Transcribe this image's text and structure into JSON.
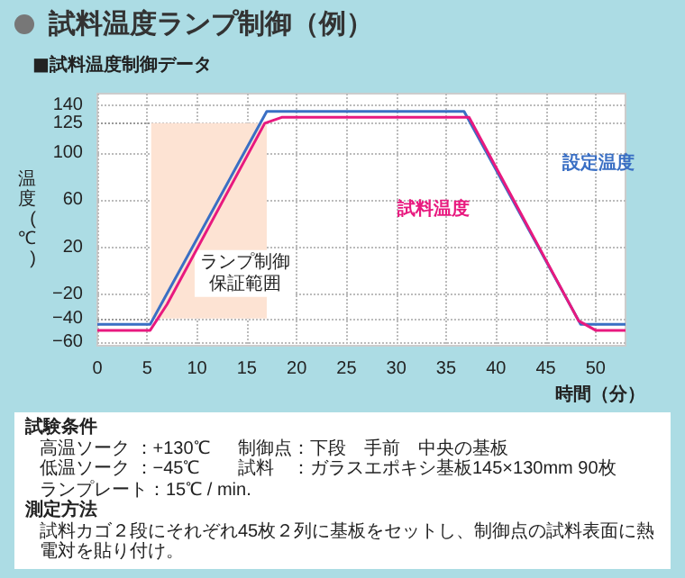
{
  "chart_data": {
    "type": "line",
    "title": "試料温度ランプ制御（例）",
    "subtitle": "■試料温度制御データ",
    "xlabel": "時間（分）",
    "ylabel": "温度(℃)",
    "xlim": [
      0,
      53
    ],
    "xticks": [
      0,
      5,
      10,
      15,
      20,
      25,
      30,
      35,
      40,
      45,
      50
    ],
    "ylim": [
      -63,
      150
    ],
    "yticks": [
      -60,
      -40,
      -20,
      20,
      60,
      100,
      125,
      140
    ],
    "grid": true,
    "marker": "none",
    "series": [
      {
        "name": "設定温度",
        "color": "#3a6fc4",
        "x": [
          0,
          5.3,
          17,
          36.8,
          48.5,
          53
        ],
        "values": [
          -45,
          -45,
          135,
          135,
          -45,
          -45
        ]
      },
      {
        "name": "試料温度",
        "color": "#e8197f",
        "x": [
          0,
          5.3,
          7,
          16.8,
          18.5,
          37.3,
          48.3,
          50,
          53
        ],
        "values": [
          -50,
          -50,
          -28,
          125,
          130,
          130,
          -42,
          -50,
          -50
        ]
      }
    ],
    "ref_lines": [
      {
        "axis": "y",
        "value": 125
      },
      {
        "axis": "y",
        "value": -40
      }
    ],
    "bands": [
      {
        "axis": "x",
        "from": 5.4,
        "to": 17,
        "label": "ランプ制御保証範囲",
        "color": "#fde3d3"
      }
    ],
    "annotations": [
      "試験条件",
      "高温ソーク ：+130℃",
      "制御点：下段　手前　中央の基板",
      "低温ソーク ：−45℃",
      "試料　：ガラスエポキシ基板145×130mm 90枚",
      "ランプレート：15℃ / min.",
      "測定方法",
      "試料カゴ２段にそれぞれ45枚２列に基板をセットし、制御点の試料表面に熱電対を貼り付け。"
    ]
  }
}
